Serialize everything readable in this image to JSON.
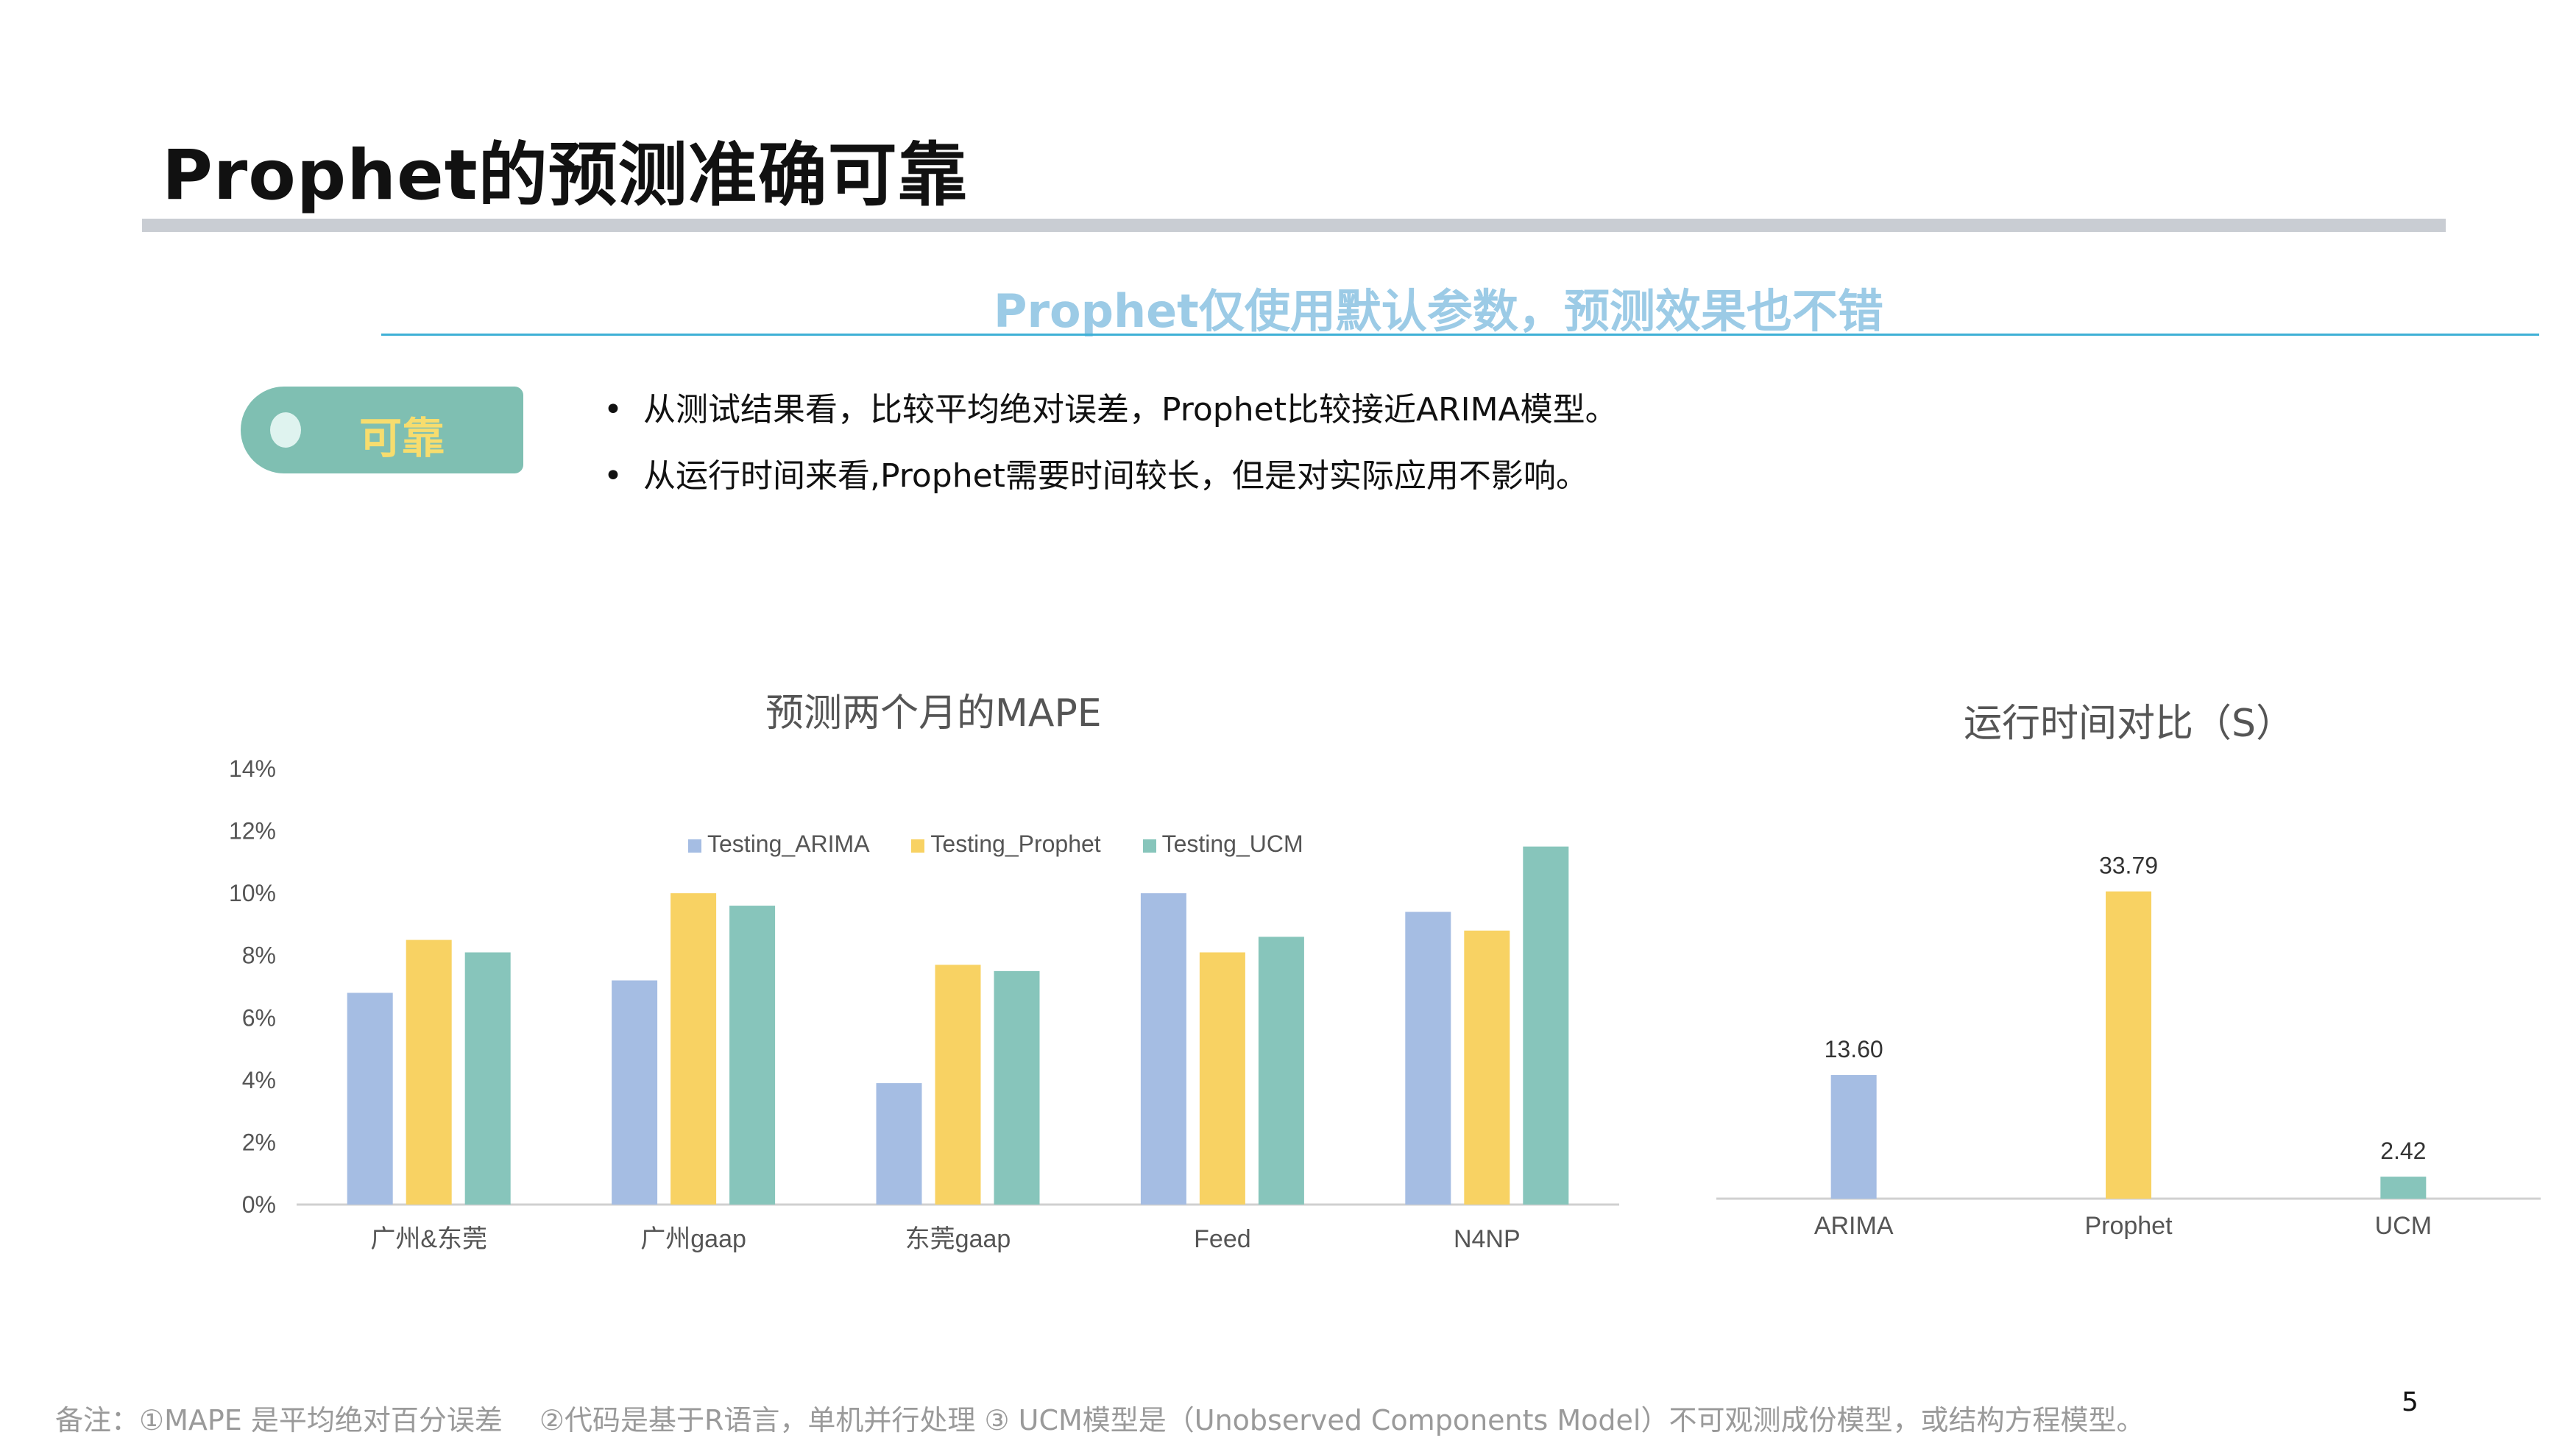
{
  "title": "Prophet的预测准确可靠",
  "subtitle": "Prophet仅使用默认参数，预测效果也不错",
  "tag": "可靠",
  "bullets": [
    "从测试结果看，比较平均绝对误差，Prophet比较接近ARIMA模型。",
    "从运行时间来看,Prophet需要时间较长，但是对实际应用不影响。"
  ],
  "bullet_symbol": "•",
  "footnote": "备注：①MAPE 是平均绝对百分误差　 ②代码是基于R语言，单机并行处理 ③ UCM模型是（Unobserved Components Model）不可观测成份模型，或结构方程模型。",
  "page_number": "5",
  "colors": {
    "arima": "#a5bde3",
    "prophet": "#f8d263",
    "ucm": "#87c5bb",
    "accent": "#3fb0d6"
  },
  "chart_data": [
    {
      "type": "bar",
      "title": "预测两个月的MAPE",
      "categories": [
        "广州&东莞",
        "广州gaap",
        "东莞gaap",
        "Feed",
        "N4NP"
      ],
      "series": [
        {
          "name": "Testing_ARIMA",
          "values": [
            6.8,
            7.2,
            3.9,
            10.0,
            9.4
          ]
        },
        {
          "name": "Testing_Prophet",
          "values": [
            8.5,
            10.0,
            7.7,
            8.1,
            8.8
          ]
        },
        {
          "name": "Testing_UCM",
          "values": [
            8.1,
            9.6,
            7.5,
            8.6,
            11.5
          ]
        }
      ],
      "y_ticks": [
        "0%",
        "2%",
        "4%",
        "6%",
        "8%",
        "10%",
        "12%",
        "14%"
      ],
      "ylim": [
        0,
        14
      ],
      "unit": "%",
      "legend": "top"
    },
    {
      "type": "bar",
      "title": "运行时间对比（S）",
      "categories": [
        "ARIMA",
        "Prophet",
        "UCM"
      ],
      "values": [
        13.6,
        33.79,
        2.42
      ],
      "value_labels": [
        "13.60",
        "33.79",
        "2.42"
      ],
      "ylim": [
        0,
        40
      ]
    }
  ]
}
